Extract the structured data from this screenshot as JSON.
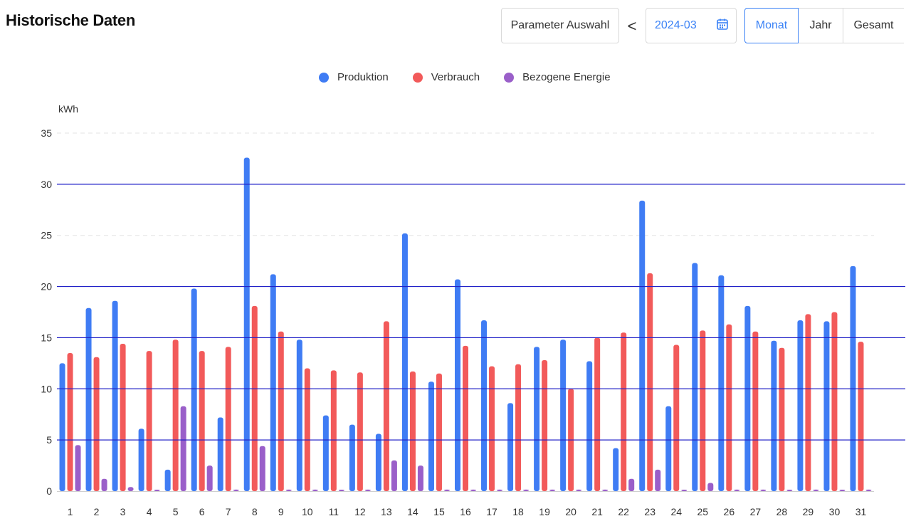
{
  "header": {
    "title": "Historische Daten",
    "param_button": "Parameter Auswahl",
    "prev_symbol": "<",
    "date_value": "2024-03",
    "segments": [
      "Monat",
      "Jahr",
      "Gesamt"
    ],
    "active_segment": "Monat"
  },
  "colors": {
    "produktion": "#3f7cf4",
    "verbrauch": "#f25a5a",
    "bezogen": "#9a5fc9",
    "accent": "#3b82f6",
    "refline": "#2222c8"
  },
  "chart_data": {
    "type": "bar",
    "ylabel": "kWh",
    "ylim": [
      0,
      35
    ],
    "yticks": [
      0,
      5,
      10,
      15,
      20,
      25,
      30,
      35
    ],
    "legend_position": "top-center",
    "categories": [
      "1",
      "2",
      "3",
      "4",
      "5",
      "6",
      "7",
      "8",
      "9",
      "10",
      "11",
      "12",
      "13",
      "14",
      "15",
      "16",
      "17",
      "18",
      "19",
      "20",
      "21",
      "22",
      "23",
      "24",
      "25",
      "26",
      "27",
      "28",
      "29",
      "30",
      "31"
    ],
    "series": [
      {
        "name": "Produktion",
        "values": [
          12.5,
          17.9,
          18.6,
          6.1,
          2.1,
          19.8,
          7.2,
          32.6,
          21.2,
          14.8,
          7.4,
          6.5,
          5.6,
          25.2,
          10.7,
          20.7,
          16.7,
          8.6,
          14.1,
          14.8,
          12.7,
          4.2,
          28.4,
          8.3,
          22.3,
          21.1,
          18.1,
          14.7,
          16.7,
          16.6,
          22.0
        ]
      },
      {
        "name": "Verbrauch",
        "values": [
          13.5,
          13.1,
          14.4,
          13.7,
          14.8,
          13.7,
          14.1,
          18.1,
          15.6,
          12.0,
          11.8,
          11.6,
          16.6,
          11.7,
          11.5,
          14.2,
          12.2,
          12.4,
          12.8,
          10.0,
          15.0,
          15.5,
          21.3,
          14.3,
          15.7,
          16.3,
          15.6,
          14.0,
          17.3,
          17.5,
          14.6
        ]
      },
      {
        "name": "Bezogene Energie",
        "values": [
          4.5,
          1.2,
          0.4,
          0.05,
          8.3,
          2.5,
          0.15,
          4.4,
          0.15,
          0.15,
          0.05,
          0.15,
          3.0,
          2.5,
          0.15,
          0.15,
          0.15,
          0.15,
          0.15,
          0.15,
          0.15,
          1.2,
          2.1,
          0.05,
          0.8,
          0.15,
          0.15,
          0.05,
          0.15,
          0.05,
          0.15
        ]
      }
    ],
    "reference_lines": [
      5,
      10,
      15,
      20,
      30
    ],
    "grid": true
  }
}
